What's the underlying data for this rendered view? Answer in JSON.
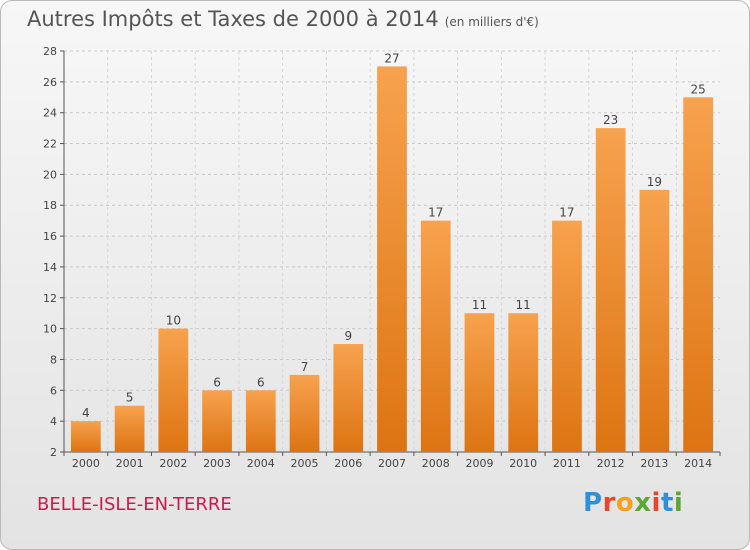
{
  "title": "Autres Impôts et Taxes de 2000 à 2014",
  "unit": "(en milliers d'€)",
  "place": "BELLE-ISLE-EN-TERRE",
  "logo": {
    "letters": [
      "P",
      "r",
      "o",
      "x",
      "i",
      "t",
      "i"
    ],
    "colors": [
      "#2f8fd8",
      "#e8462a",
      "#f4a11d",
      "#5aa832",
      "#e8462a",
      "#2f8fd8",
      "#5aa832"
    ]
  },
  "chart_data": {
    "type": "bar",
    "categories": [
      "2000",
      "2001",
      "2002",
      "2003",
      "2004",
      "2005",
      "2006",
      "2007",
      "2008",
      "2009",
      "2010",
      "2011",
      "2012",
      "2013",
      "2014"
    ],
    "values": [
      4,
      5,
      10,
      6,
      6,
      7,
      9,
      27,
      17,
      11,
      11,
      17,
      23,
      19,
      25
    ],
    "ylim": [
      2,
      28
    ],
    "yticks": [
      2,
      4,
      6,
      8,
      10,
      12,
      14,
      16,
      18,
      20,
      22,
      24,
      26,
      28
    ],
    "grid": true,
    "bar_color": "#f0892c"
  }
}
